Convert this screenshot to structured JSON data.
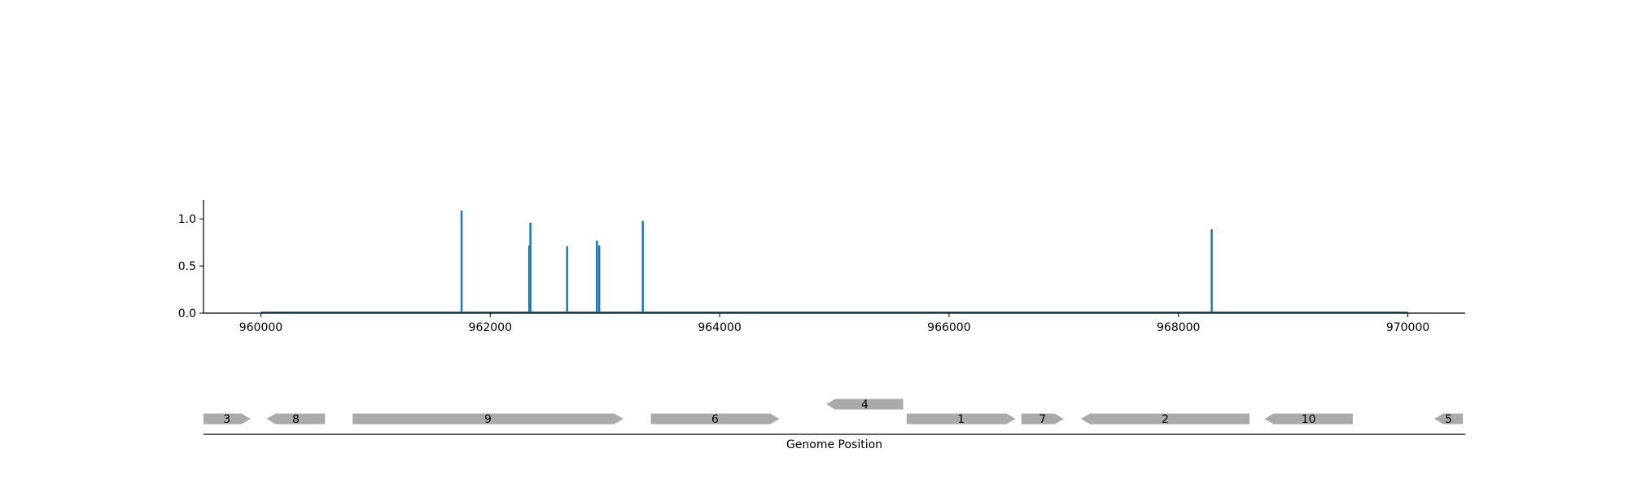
{
  "chart_data": [
    {
      "type": "bar",
      "title": "",
      "xlabel": "",
      "ylabel": "",
      "xlim": [
        959500,
        970500
      ],
      "ylim": [
        0,
        1.2
      ],
      "x_ticks": [
        960000,
        962000,
        964000,
        966000,
        968000,
        970000
      ],
      "x_tick_labels": [
        "960000",
        "962000",
        "964000",
        "966000",
        "968000",
        "970000"
      ],
      "y_ticks": [
        0,
        0.5,
        1.0
      ],
      "y_tick_labels": [
        "0.0",
        "0.5",
        "1.0"
      ],
      "grid": false,
      "color": "#1f77b4",
      "baseline_range": [
        960000,
        970000
      ],
      "x": [
        961750,
        962340,
        962350,
        962670,
        962930,
        962950,
        963330,
        968290
      ],
      "values": [
        1.09,
        0.72,
        0.96,
        0.71,
        0.77,
        0.72,
        0.98,
        0.89
      ]
    },
    {
      "type": "gene-track",
      "xlabel": "Genome Position",
      "color": "#aaaaaa",
      "genes": [
        {
          "label": "3",
          "start": 959500,
          "end": 959910,
          "strand": "+",
          "row": 0
        },
        {
          "label": "8",
          "start": 960050,
          "end": 960560,
          "strand": "-",
          "row": 0
        },
        {
          "label": "9",
          "start": 960800,
          "end": 963160,
          "strand": "+",
          "row": 0
        },
        {
          "label": "6",
          "start": 963400,
          "end": 964520,
          "strand": "+",
          "row": 0
        },
        {
          "label": "4",
          "start": 964930,
          "end": 965600,
          "strand": "-",
          "row": 1
        },
        {
          "label": "1",
          "start": 965630,
          "end": 966580,
          "strand": "+",
          "row": 0
        },
        {
          "label": "7",
          "start": 966630,
          "end": 967000,
          "strand": "+",
          "row": 0
        },
        {
          "label": "2",
          "start": 967150,
          "end": 968620,
          "strand": "-",
          "row": 0
        },
        {
          "label": "10",
          "start": 968750,
          "end": 969520,
          "strand": "-",
          "row": 0
        },
        {
          "label": "5",
          "start": 970230,
          "end": 970480,
          "strand": "-",
          "row": 0
        }
      ]
    }
  ]
}
